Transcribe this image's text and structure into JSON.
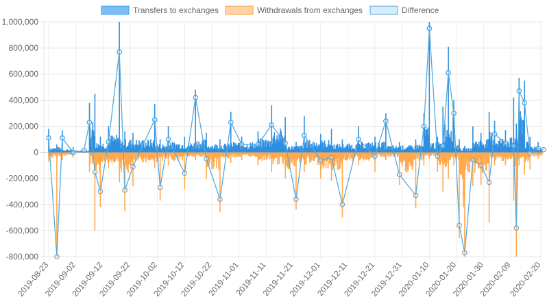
{
  "chart_data": {
    "type": "bar",
    "title": "",
    "xlabel": "",
    "ylabel": "",
    "ylim": [
      -800000,
      1000000
    ],
    "y_ticks": [
      1000000,
      800000,
      600000,
      400000,
      200000,
      0,
      -200000,
      -400000,
      -600000,
      -800000
    ],
    "y_tick_labels": [
      "1,000,000",
      "800,000",
      "600,000",
      "400,000",
      "200,000",
      "0",
      "-200,000",
      "-400,000",
      "-600,000",
      "-800,000"
    ],
    "x_tick_labels": [
      "2019-08-23",
      "2019-09-02",
      "2019-09-12",
      "2019-09-22",
      "2019-10-02",
      "2019-10-12",
      "2019-10-22",
      "2019-11-01",
      "2019-11-11",
      "2019-11-21",
      "2019-12-01",
      "2019-12-11",
      "2019-12-21",
      "2019-12-31",
      "2020-01-10",
      "2020-01-20",
      "2020-01-30",
      "2020-02-09",
      "2020-02-20"
    ],
    "grid": true,
    "legend_position": "top",
    "interval": "6 hours",
    "anchors": [
      {
        "date": "2019-08-23",
        "transfers": 180000,
        "withdrawals": -70000
      },
      {
        "date": "2019-08-26",
        "transfers": 60000,
        "withdrawals": -880000
      },
      {
        "date": "2019-08-28",
        "transfers": 170000,
        "withdrawals": -60000
      },
      {
        "date": "2019-09-01",
        "transfers": 40000,
        "withdrawals": -40000
      },
      {
        "date": "2019-09-05",
        "transfers": 20000,
        "withdrawals": -5000
      },
      {
        "date": "2019-09-07",
        "transfers": 380000,
        "withdrawals": -150000
      },
      {
        "date": "2019-09-09",
        "transfers": 450000,
        "withdrawals": -600000
      },
      {
        "date": "2019-09-11",
        "transfers": 120000,
        "withdrawals": -420000
      },
      {
        "date": "2019-09-14",
        "transfers": 200000,
        "withdrawals": -120000
      },
      {
        "date": "2019-09-18",
        "transfers": 1000000,
        "withdrawals": -230000
      },
      {
        "date": "2019-09-20",
        "transfers": 160000,
        "withdrawals": -450000
      },
      {
        "date": "2019-09-23",
        "transfers": 150000,
        "withdrawals": -260000
      },
      {
        "date": "2019-10-01",
        "transfers": 370000,
        "withdrawals": -120000
      },
      {
        "date": "2019-10-03",
        "transfers": 100000,
        "withdrawals": -370000
      },
      {
        "date": "2019-10-06",
        "transfers": 200000,
        "withdrawals": -100000
      },
      {
        "date": "2019-10-12",
        "transfers": 120000,
        "withdrawals": -280000
      },
      {
        "date": "2019-10-16",
        "transfers": 480000,
        "withdrawals": -60000
      },
      {
        "date": "2019-10-20",
        "transfers": 150000,
        "withdrawals": -200000
      },
      {
        "date": "2019-10-25",
        "transfers": 100000,
        "withdrawals": -460000
      },
      {
        "date": "2019-10-29",
        "transfers": 310000,
        "withdrawals": -80000
      },
      {
        "date": "2019-11-02",
        "transfers": 120000,
        "withdrawals": -60000
      },
      {
        "date": "2019-11-08",
        "transfers": 160000,
        "withdrawals": -100000
      },
      {
        "date": "2019-11-13",
        "transfers": 360000,
        "withdrawals": -150000
      },
      {
        "date": "2019-11-18",
        "transfers": 270000,
        "withdrawals": -200000
      },
      {
        "date": "2019-11-22",
        "transfers": 80000,
        "withdrawals": -440000
      },
      {
        "date": "2019-11-25",
        "transfers": 280000,
        "withdrawals": -150000
      },
      {
        "date": "2019-12-01",
        "transfers": 140000,
        "withdrawals": -200000
      },
      {
        "date": "2019-12-05",
        "transfers": 180000,
        "withdrawals": -220000
      },
      {
        "date": "2019-12-09",
        "transfers": 100000,
        "withdrawals": -500000
      },
      {
        "date": "2019-12-15",
        "transfers": 200000,
        "withdrawals": -100000
      },
      {
        "date": "2019-12-21",
        "transfers": 120000,
        "withdrawals": -150000
      },
      {
        "date": "2019-12-25",
        "transfers": 300000,
        "withdrawals": -60000
      },
      {
        "date": "2019-12-30",
        "transfers": 80000,
        "withdrawals": -250000
      },
      {
        "date": "2020-01-05",
        "transfers": 100000,
        "withdrawals": -430000
      },
      {
        "date": "2020-01-08",
        "transfers": 300000,
        "withdrawals": -100000
      },
      {
        "date": "2020-01-10",
        "transfers": 1000000,
        "withdrawals": -50000
      },
      {
        "date": "2020-01-13",
        "transfers": 120000,
        "withdrawals": -150000
      },
      {
        "date": "2020-01-15",
        "transfers": 350000,
        "withdrawals": -300000
      },
      {
        "date": "2020-01-17",
        "transfers": 810000,
        "withdrawals": -200000
      },
      {
        "date": "2020-01-19",
        "transfers": 400000,
        "withdrawals": -100000
      },
      {
        "date": "2020-01-21",
        "transfers": 100000,
        "withdrawals": -660000
      },
      {
        "date": "2020-01-23",
        "transfers": 50000,
        "withdrawals": -820000
      },
      {
        "date": "2020-01-26",
        "transfers": 200000,
        "withdrawals": -260000
      },
      {
        "date": "2020-01-29",
        "transfers": 150000,
        "withdrawals": -250000
      },
      {
        "date": "2020-02-01",
        "transfers": 310000,
        "withdrawals": -540000
      },
      {
        "date": "2020-02-03",
        "transfers": 240000,
        "withdrawals": -100000
      },
      {
        "date": "2020-02-07",
        "transfers": 170000,
        "withdrawals": -100000
      },
      {
        "date": "2020-02-10",
        "transfers": 420000,
        "withdrawals": -370000
      },
      {
        "date": "2020-02-11",
        "transfers": 220000,
        "withdrawals": -800000
      },
      {
        "date": "2020-02-12",
        "transfers": 570000,
        "withdrawals": -100000
      },
      {
        "date": "2020-02-14",
        "transfers": 550000,
        "withdrawals": -170000
      },
      {
        "date": "2020-02-16",
        "transfers": 120000,
        "withdrawals": -130000
      },
      {
        "date": "2020-02-19",
        "transfers": 80000,
        "withdrawals": -50000
      },
      {
        "date": "2020-02-21",
        "transfers": 60000,
        "withdrawals": -40000
      }
    ],
    "series": [
      {
        "name": "Transfers to exchanges",
        "kind": "bar",
        "color": "#36a2eb",
        "fill": "#7fbdf3"
      },
      {
        "name": "Withdrawals from exchanges",
        "kind": "bar",
        "color": "#ff9f40",
        "fill": "#ffd4a8"
      },
      {
        "name": "Difference",
        "kind": "line",
        "color": "#55aadd",
        "fill": "#d6ecf8"
      }
    ]
  }
}
